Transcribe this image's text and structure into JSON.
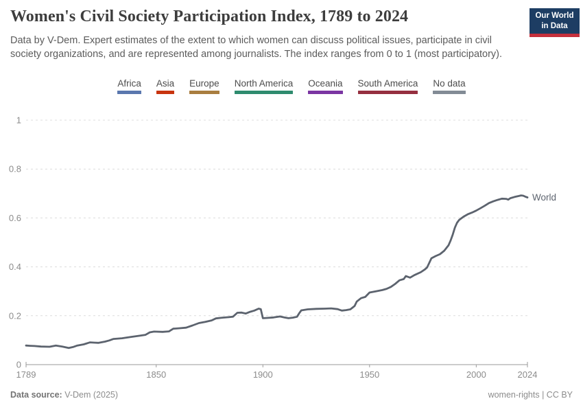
{
  "header": {
    "title": "Women's Civil Society Participation Index, 1789 to 2024",
    "subtitle": "Data by V-Dem. Expert estimates of the extent to which women can discuss political issues, participate in civil society organizations, and are represented among journalists. The index ranges from 0 to 1 (most participatory).",
    "logo": {
      "line1": "Our World",
      "line2": "in Data",
      "bg_color": "#1d3d63",
      "accent_color": "#c5303c"
    }
  },
  "legend": {
    "items": [
      {
        "label": "Africa",
        "color": "#5a77ae"
      },
      {
        "label": "Asia",
        "color": "#c8340f"
      },
      {
        "label": "Europe",
        "color": "#a97d3f"
      },
      {
        "label": "North America",
        "color": "#2e8b6e"
      },
      {
        "label": "Oceania",
        "color": "#7a35a2"
      },
      {
        "label": "South America",
        "color": "#952f3f"
      },
      {
        "label": "No data",
        "color": "#828b95"
      }
    ]
  },
  "chart_data": {
    "type": "line",
    "title": "Women's Civil Society Participation Index, 1789 to 2024",
    "xlabel": "",
    "ylabel": "",
    "xlim": [
      1789,
      2024
    ],
    "ylim": [
      0,
      1
    ],
    "x_ticks": [
      1789,
      1850,
      1900,
      1950,
      2000,
      2024
    ],
    "y_ticks": [
      0,
      0.2,
      0.4,
      0.6,
      0.8,
      1
    ],
    "grid": "horizontal-dashed",
    "grid_color": "#dcdcdc",
    "axis_color": "#9a9a9a",
    "tick_label_color": "#8b8b8b",
    "legend_position": "end-of-line-label",
    "series": [
      {
        "name": "World",
        "color": "#5c636e",
        "points": [
          [
            1789,
            0.078
          ],
          [
            1791,
            0.077
          ],
          [
            1793,
            0.076
          ],
          [
            1796,
            0.074
          ],
          [
            1800,
            0.073
          ],
          [
            1803,
            0.078
          ],
          [
            1806,
            0.074
          ],
          [
            1809,
            0.068
          ],
          [
            1811,
            0.072
          ],
          [
            1813,
            0.078
          ],
          [
            1816,
            0.083
          ],
          [
            1819,
            0.091
          ],
          [
            1821,
            0.09
          ],
          [
            1823,
            0.089
          ],
          [
            1826,
            0.094
          ],
          [
            1828,
            0.099
          ],
          [
            1830,
            0.105
          ],
          [
            1834,
            0.108
          ],
          [
            1838,
            0.113
          ],
          [
            1842,
            0.118
          ],
          [
            1845,
            0.122
          ],
          [
            1847,
            0.132
          ],
          [
            1849,
            0.135
          ],
          [
            1853,
            0.134
          ],
          [
            1856,
            0.136
          ],
          [
            1858,
            0.147
          ],
          [
            1861,
            0.149
          ],
          [
            1864,
            0.151
          ],
          [
            1867,
            0.16
          ],
          [
            1870,
            0.17
          ],
          [
            1873,
            0.175
          ],
          [
            1876,
            0.181
          ],
          [
            1878,
            0.189
          ],
          [
            1881,
            0.192
          ],
          [
            1884,
            0.194
          ],
          [
            1886,
            0.196
          ],
          [
            1888,
            0.212
          ],
          [
            1890,
            0.213
          ],
          [
            1892,
            0.209
          ],
          [
            1894,
            0.216
          ],
          [
            1896,
            0.221
          ],
          [
            1898,
            0.229
          ],
          [
            1899,
            0.227
          ],
          [
            1900,
            0.19
          ],
          [
            1902,
            0.191
          ],
          [
            1905,
            0.193
          ],
          [
            1908,
            0.197
          ],
          [
            1910,
            0.193
          ],
          [
            1912,
            0.19
          ],
          [
            1914,
            0.192
          ],
          [
            1916,
            0.196
          ],
          [
            1917,
            0.21
          ],
          [
            1918,
            0.222
          ],
          [
            1921,
            0.226
          ],
          [
            1925,
            0.228
          ],
          [
            1929,
            0.229
          ],
          [
            1932,
            0.23
          ],
          [
            1935,
            0.227
          ],
          [
            1937,
            0.221
          ],
          [
            1939,
            0.223
          ],
          [
            1941,
            0.226
          ],
          [
            1943,
            0.24
          ],
          [
            1944,
            0.258
          ],
          [
            1946,
            0.272
          ],
          [
            1948,
            0.277
          ],
          [
            1950,
            0.295
          ],
          [
            1953,
            0.3
          ],
          [
            1956,
            0.305
          ],
          [
            1958,
            0.31
          ],
          [
            1960,
            0.318
          ],
          [
            1962,
            0.33
          ],
          [
            1964,
            0.345
          ],
          [
            1966,
            0.35
          ],
          [
            1967,
            0.362
          ],
          [
            1969,
            0.356
          ],
          [
            1971,
            0.366
          ],
          [
            1974,
            0.378
          ],
          [
            1976,
            0.39
          ],
          [
            1977,
            0.398
          ],
          [
            1979,
            0.435
          ],
          [
            1981,
            0.444
          ],
          [
            1983,
            0.452
          ],
          [
            1985,
            0.466
          ],
          [
            1987,
            0.488
          ],
          [
            1988,
            0.508
          ],
          [
            1989,
            0.532
          ],
          [
            1990,
            0.56
          ],
          [
            1991,
            0.58
          ],
          [
            1992,
            0.592
          ],
          [
            1994,
            0.605
          ],
          [
            1996,
            0.615
          ],
          [
            1998,
            0.622
          ],
          [
            2000,
            0.63
          ],
          [
            2002,
            0.64
          ],
          [
            2004,
            0.65
          ],
          [
            2006,
            0.661
          ],
          [
            2008,
            0.668
          ],
          [
            2010,
            0.674
          ],
          [
            2012,
            0.679
          ],
          [
            2014,
            0.678
          ],
          [
            2015,
            0.675
          ],
          [
            2016,
            0.681
          ],
          [
            2018,
            0.686
          ],
          [
            2020,
            0.69
          ],
          [
            2021,
            0.692
          ],
          [
            2022,
            0.691
          ],
          [
            2023,
            0.687
          ],
          [
            2024,
            0.684
          ]
        ]
      }
    ]
  },
  "footer": {
    "source_label": "Data source:",
    "source_value": "V-Dem (2025)",
    "right_text": "women-rights | CC BY"
  }
}
